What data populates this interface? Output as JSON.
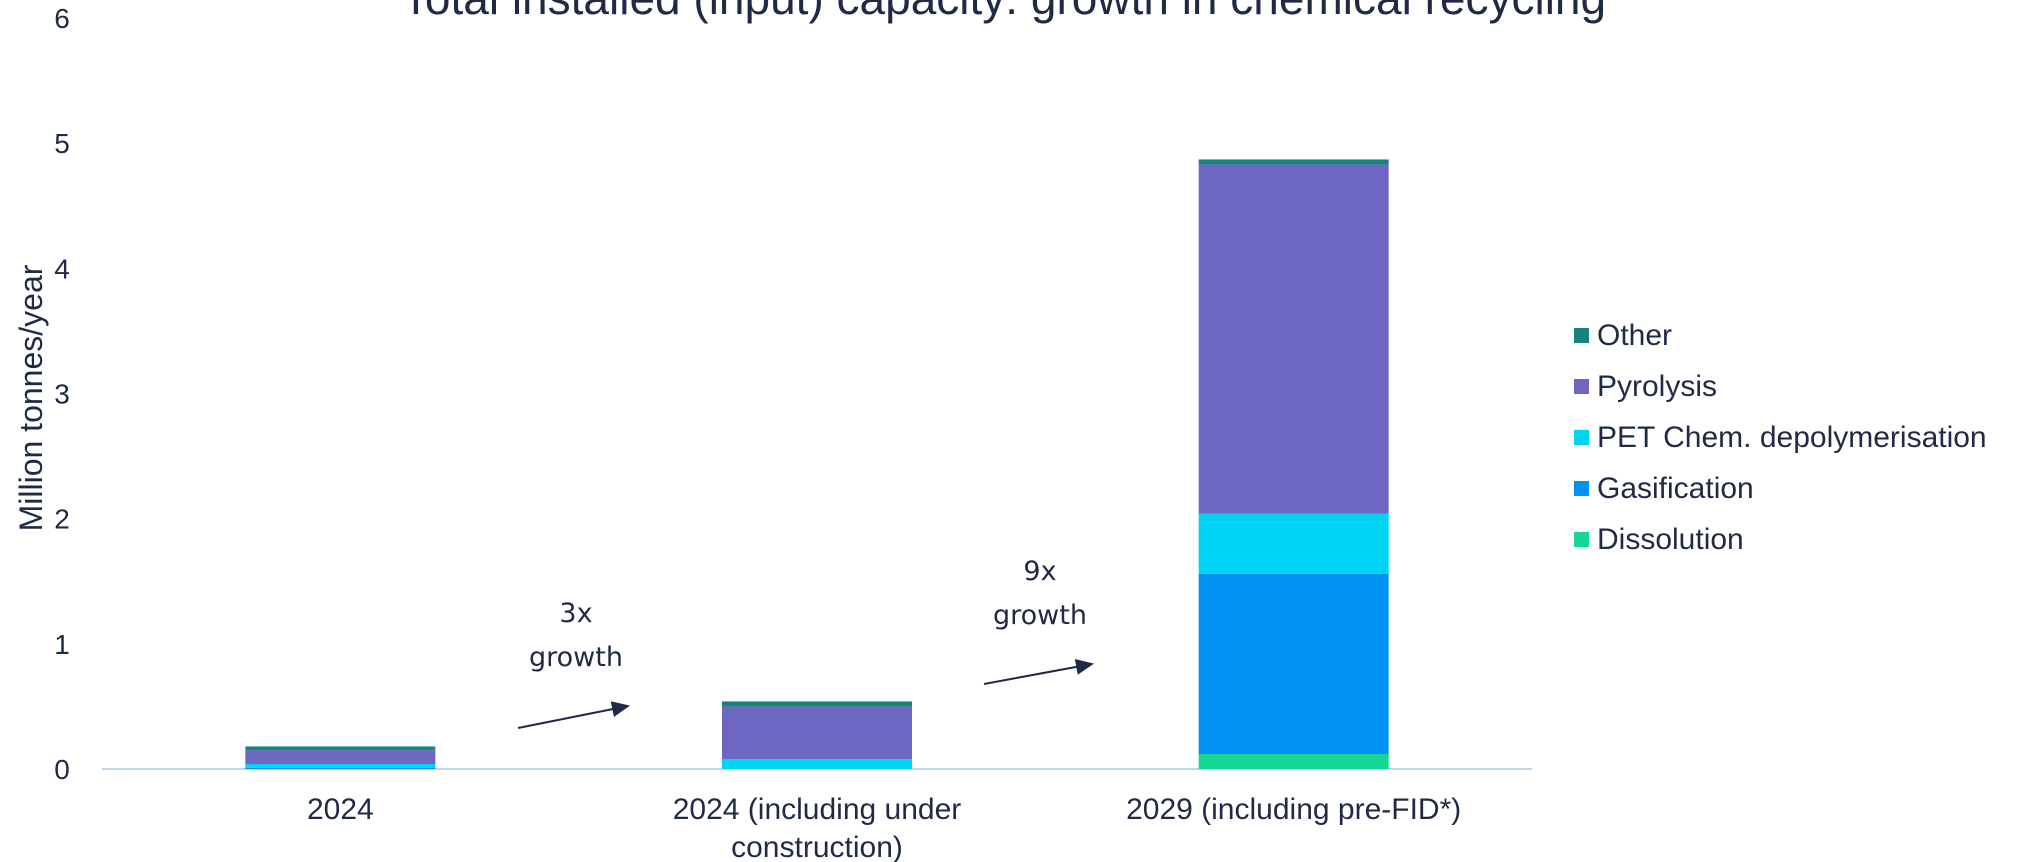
{
  "chart_data": {
    "type": "bar",
    "stacked": true,
    "title": "Total installed (input) capacity: growth in chemical recycling",
    "ylabel": "Million tonnes/year",
    "xlabel": "",
    "ylim": [
      0,
      6
    ],
    "yticks": [
      0,
      1,
      2,
      3,
      4,
      5,
      6
    ],
    "grid": false,
    "legend_position": "right",
    "categories": [
      "2024",
      "2024 (including under construction)",
      "2029 (including pre-FID*)"
    ],
    "category_lines": [
      [
        "2024"
      ],
      [
        "2024 (including under",
        "construction)"
      ],
      [
        "2029 (including pre-FID*)"
      ]
    ],
    "series": [
      {
        "name": "Dissolution",
        "color": "#17d795",
        "values": [
          0.0,
          0.0,
          0.12
        ]
      },
      {
        "name": "Gasification",
        "color": "#0091f2",
        "values": [
          0.01,
          0.0,
          1.44
        ]
      },
      {
        "name": "PET Chem. depolymerisation",
        "color": "#00d4f5",
        "values": [
          0.03,
          0.08,
          0.48
        ]
      },
      {
        "name": "Pyrolysis",
        "color": "#6d67c2",
        "values": [
          0.11,
          0.42,
          2.79
        ]
      },
      {
        "name": "Other",
        "color": "#16847a",
        "values": [
          0.03,
          0.04,
          0.04
        ]
      }
    ],
    "legend_order": [
      4,
      3,
      2,
      1,
      0
    ],
    "annotations": [
      {
        "lines": [
          "3x",
          "growth"
        ],
        "between": [
          0,
          1
        ]
      },
      {
        "lines": [
          "9x",
          "growth"
        ],
        "between": [
          1,
          2
        ]
      }
    ]
  }
}
